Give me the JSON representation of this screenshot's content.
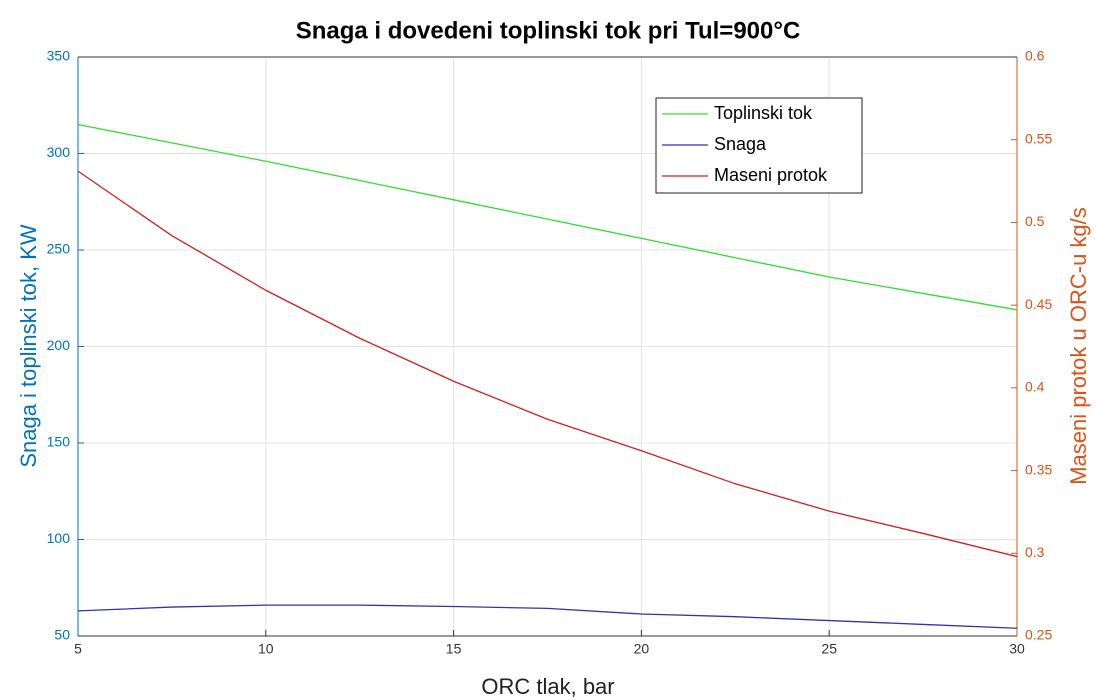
{
  "chart_data": {
    "type": "line",
    "title": "Snaga i dovedeni toplinski tok pri Tul=900°C",
    "xlabel": "ORC tlak, bar",
    "ylabel": "Snaga i toplinski tok, KW",
    "y2label": "Maseni protok u ORC-u kg/s",
    "x": [
      5,
      7.5,
      10,
      12.5,
      15,
      17.5,
      20,
      22.5,
      25,
      27.5,
      30
    ],
    "series": [
      {
        "name": "Toplinski tok",
        "color": "#33dd33",
        "values": [
          315,
          305.5,
          296,
          286,
          276,
          266,
          256,
          246,
          236,
          227.5,
          219
        ]
      },
      {
        "name": "Snaga",
        "color": "#3333aa",
        "values": [
          63,
          65,
          66,
          66,
          65.3,
          64.3,
          61.4,
          60,
          58,
          56,
          54
        ]
      },
      {
        "name": "Maseni protok",
        "color": "#cc2222",
        "axis": "y2",
        "values": [
          0.531,
          0.492,
          0.459,
          0.43,
          0.404,
          0.381,
          0.362,
          0.342,
          0.3255,
          0.312,
          0.298
        ]
      }
    ],
    "xlim": [
      5,
      30
    ],
    "xticks": [
      5,
      10,
      15,
      20,
      25,
      30
    ],
    "ylim": [
      50,
      350
    ],
    "yticks": [
      50,
      100,
      150,
      200,
      250,
      300,
      350
    ],
    "y2lim": [
      0.25,
      0.6
    ],
    "y2ticks": [
      0.25,
      0.3,
      0.35,
      0.4,
      0.45,
      0.5,
      0.55,
      0.6
    ],
    "ycolor": "#0072bd",
    "y2color": "#d95319",
    "grid": true,
    "legend": "northeast"
  }
}
